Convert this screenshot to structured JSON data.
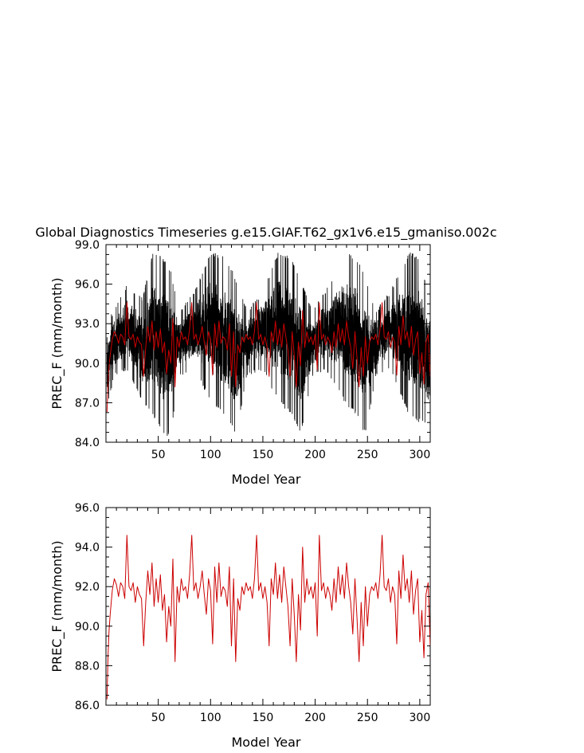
{
  "title": "Global Diagnostics Timeseries g.e15.GIAF.T62_gx1v6.e15_gmaniso.002c",
  "colors": {
    "monthly": "#000000",
    "annual": "#cc0000",
    "axes": "#000000"
  },
  "chart_data": [
    {
      "type": "line",
      "xlabel": "Model Year",
      "ylabel": "PREC_F (mm/month)",
      "xlim": [
        0,
        310
      ],
      "ylim": [
        84.0,
        99.0
      ],
      "x_ticks": [
        50,
        100,
        150,
        200,
        250,
        300
      ],
      "y_ticks": [
        "84.0",
        "87.0",
        "90.0",
        "93.0",
        "96.0",
        "99.0"
      ],
      "grid": false,
      "series": [
        {
          "color": "#000000",
          "x_step": 0.0833,
          "x_start": 1,
          "cycle_length_years": 62,
          "approx_envelope": [
            [
              0,
              84.0,
              91.0
            ],
            [
              2,
              87.0,
              93.5
            ],
            [
              8,
              89.0,
              94.0
            ],
            [
              20,
              89.5,
              96.0
            ],
            [
              35,
              87.0,
              95.0
            ],
            [
              45,
              86.0,
              98.5
            ],
            [
              55,
              84.5,
              98.0
            ],
            [
              62,
              84.5,
              97.0
            ],
            [
              70,
              89.0,
              94.0
            ],
            [
              85,
              89.5,
              95.5
            ],
            [
              100,
              87.0,
              98.5
            ],
            [
              115,
              86.0,
              98.0
            ],
            [
              124,
              84.5,
              96.5
            ],
            [
              135,
              89.0,
              94.0
            ],
            [
              150,
              89.5,
              95.5
            ],
            [
              165,
              87.0,
              98.5
            ],
            [
              178,
              86.0,
              98.0
            ],
            [
              186,
              84.5,
              96.5
            ],
            [
              197,
              89.0,
              94.0
            ],
            [
              210,
              89.5,
              95.5
            ],
            [
              228,
              87.0,
              98.5
            ],
            [
              240,
              86.0,
              98.0
            ],
            [
              248,
              84.5,
              96.5
            ],
            [
              258,
              89.0,
              94.0
            ],
            [
              272,
              89.5,
              95.5
            ],
            [
              290,
              86.0,
              98.5
            ],
            [
              300,
              85.5,
              98.0
            ],
            [
              310,
              85.0,
              95.0
            ]
          ]
        },
        {
          "color": "#cc0000",
          "x": [
            1,
            2,
            3,
            4,
            5,
            6,
            8,
            10,
            12,
            14,
            16,
            18,
            20,
            22,
            24,
            26,
            28,
            30,
            32,
            34,
            36,
            38,
            40,
            42,
            44,
            46,
            48,
            50,
            52,
            54,
            56,
            58,
            60,
            62,
            64,
            66,
            68,
            70,
            72,
            74,
            76,
            78,
            80,
            82,
            84,
            86,
            88,
            90,
            92,
            94,
            96,
            98,
            100,
            102,
            104,
            106,
            108,
            110,
            112,
            114,
            116,
            118,
            120,
            122,
            124,
            126,
            128,
            130,
            132,
            134,
            136,
            138,
            140,
            142,
            144,
            146,
            148,
            150,
            152,
            154,
            156,
            158,
            160,
            162,
            164,
            166,
            168,
            170,
            172,
            174,
            176,
            178,
            180,
            182,
            184,
            186,
            188,
            190,
            192,
            194,
            196,
            198,
            200,
            202,
            204,
            206,
            208,
            210,
            212,
            214,
            216,
            218,
            220,
            222,
            224,
            226,
            228,
            230,
            232,
            234,
            236,
            238,
            240,
            242,
            244,
            246,
            248,
            250,
            252,
            254,
            256,
            258,
            260,
            262,
            264,
            266,
            268,
            270,
            272,
            274,
            276,
            278,
            280,
            282,
            284,
            286,
            288,
            290,
            292,
            294,
            296,
            298,
            300,
            302,
            304,
            306,
            308,
            310
          ],
          "y": [
            86.3,
            88.5,
            89.8,
            90.6,
            91.2,
            91.8,
            92.4,
            92.1,
            91.5,
            92.2,
            92.0,
            91.4,
            94.6,
            92.0,
            91.8,
            92.2,
            91.2,
            92.0,
            91.6,
            91.4,
            89.0,
            91.2,
            92.8,
            91.6,
            93.2,
            91.0,
            92.4,
            91.2,
            92.6,
            90.8,
            91.6,
            89.2,
            91.0,
            90.0,
            93.4,
            88.2,
            92.0,
            91.2,
            92.4,
            91.8,
            92.0,
            91.4,
            92.6,
            94.6,
            91.8,
            92.2,
            91.4,
            92.0,
            92.8,
            91.6,
            90.6,
            92.4,
            91.8,
            89.1,
            93.0,
            91.2,
            93.2,
            91.5,
            92.0,
            91.8,
            91.0,
            93.0,
            89.0,
            92.4,
            88.2,
            91.4,
            90.8,
            92.0,
            91.6,
            92.2,
            91.8,
            92.0,
            91.4,
            92.4,
            94.6,
            91.8,
            92.2,
            91.4,
            92.0,
            91.2,
            89.0,
            92.4,
            91.6,
            93.2,
            91.4,
            92.6,
            91.2,
            93.0,
            92.0,
            91.0,
            89.0,
            92.4,
            90.6,
            88.2,
            91.6,
            89.8,
            94.0,
            91.2,
            92.4,
            91.6,
            92.0,
            91.4,
            92.2,
            89.5,
            94.6,
            91.8,
            92.2,
            91.4,
            92.0,
            91.6,
            90.8,
            92.4,
            91.2,
            93.0,
            91.6,
            92.6,
            91.4,
            93.2,
            92.0,
            91.2,
            89.6,
            92.4,
            90.4,
            88.2,
            91.2,
            89.0,
            92.0,
            90.0,
            91.6,
            92.0,
            91.8,
            92.2,
            91.4,
            92.6,
            94.6,
            92.0,
            91.8,
            92.4,
            91.2,
            92.0,
            91.6,
            89.1,
            92.8,
            91.4,
            93.6,
            91.8,
            92.4,
            91.2,
            92.8,
            90.6,
            91.8,
            92.4,
            89.2,
            90.8,
            88.4,
            91.6,
            92.2,
            89.0
          ]
        }
      ]
    },
    {
      "type": "line",
      "xlabel": "Model Year",
      "ylabel": "PREC_F (mm/month)",
      "xlim": [
        0,
        310
      ],
      "ylim": [
        86.0,
        96.0
      ],
      "x_ticks": [
        50,
        100,
        150,
        200,
        250,
        300
      ],
      "y_ticks": [
        "86.0",
        "88.0",
        "90.0",
        "92.0",
        "94.0",
        "96.0"
      ],
      "grid": false,
      "series": [
        {
          "color": "#cc0000",
          "x": [
            1,
            2,
            3,
            4,
            5,
            6,
            8,
            10,
            12,
            14,
            16,
            18,
            20,
            22,
            24,
            26,
            28,
            30,
            32,
            34,
            36,
            38,
            40,
            42,
            44,
            46,
            48,
            50,
            52,
            54,
            56,
            58,
            60,
            62,
            64,
            66,
            68,
            70,
            72,
            74,
            76,
            78,
            80,
            82,
            84,
            86,
            88,
            90,
            92,
            94,
            96,
            98,
            100,
            102,
            104,
            106,
            108,
            110,
            112,
            114,
            116,
            118,
            120,
            122,
            124,
            126,
            128,
            130,
            132,
            134,
            136,
            138,
            140,
            142,
            144,
            146,
            148,
            150,
            152,
            154,
            156,
            158,
            160,
            162,
            164,
            166,
            168,
            170,
            172,
            174,
            176,
            178,
            180,
            182,
            184,
            186,
            188,
            190,
            192,
            194,
            196,
            198,
            200,
            202,
            204,
            206,
            208,
            210,
            212,
            214,
            216,
            218,
            220,
            222,
            224,
            226,
            228,
            230,
            232,
            234,
            236,
            238,
            240,
            242,
            244,
            246,
            248,
            250,
            252,
            254,
            256,
            258,
            260,
            262,
            264,
            266,
            268,
            270,
            272,
            274,
            276,
            278,
            280,
            282,
            284,
            286,
            288,
            290,
            292,
            294,
            296,
            298,
            300,
            302,
            304,
            306,
            308,
            310
          ],
          "y": [
            86.3,
            88.5,
            89.8,
            90.6,
            91.2,
            91.8,
            92.4,
            92.1,
            91.5,
            92.2,
            92.0,
            91.4,
            94.6,
            92.0,
            91.8,
            92.2,
            91.2,
            92.0,
            91.6,
            91.4,
            89.0,
            91.2,
            92.8,
            91.6,
            93.2,
            91.0,
            92.4,
            91.2,
            92.6,
            90.8,
            91.6,
            89.2,
            91.0,
            90.0,
            93.4,
            88.2,
            92.0,
            91.2,
            92.4,
            91.8,
            92.0,
            91.4,
            92.6,
            94.6,
            91.8,
            92.2,
            91.4,
            92.0,
            92.8,
            91.6,
            90.6,
            92.4,
            91.8,
            89.1,
            93.0,
            91.2,
            93.2,
            91.5,
            92.0,
            91.8,
            91.0,
            93.0,
            89.0,
            92.4,
            88.2,
            91.4,
            90.8,
            92.0,
            91.6,
            92.2,
            91.8,
            92.0,
            91.4,
            92.4,
            94.6,
            91.8,
            92.2,
            91.4,
            92.0,
            91.2,
            89.0,
            92.4,
            91.6,
            93.2,
            91.4,
            92.6,
            91.2,
            93.0,
            92.0,
            91.0,
            89.0,
            92.4,
            90.6,
            88.2,
            91.6,
            89.8,
            94.0,
            91.2,
            92.4,
            91.6,
            92.0,
            91.4,
            92.2,
            89.5,
            94.6,
            91.8,
            92.2,
            91.4,
            92.0,
            91.6,
            90.8,
            92.4,
            91.2,
            93.0,
            91.6,
            92.6,
            91.4,
            93.2,
            92.0,
            91.2,
            89.6,
            92.4,
            90.4,
            88.2,
            91.2,
            89.0,
            92.0,
            90.0,
            91.6,
            92.0,
            91.8,
            92.2,
            91.4,
            92.6,
            94.6,
            92.0,
            91.8,
            92.4,
            91.2,
            92.0,
            91.6,
            89.1,
            92.8,
            91.4,
            93.6,
            91.8,
            92.4,
            91.2,
            92.8,
            90.6,
            91.8,
            92.4,
            89.2,
            90.8,
            88.4,
            91.6,
            92.2,
            89.0
          ]
        }
      ]
    }
  ]
}
